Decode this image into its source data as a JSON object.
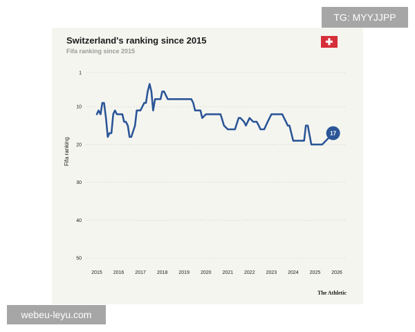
{
  "watermarks": {
    "top_right": "TG: MYYJJPP",
    "bottom_left": "webeu-leyu.com"
  },
  "brand": "The Athletic",
  "flag_icon": "swiss-flag-icon",
  "colors": {
    "line": "#2a5597",
    "flag": "#d62f3a",
    "background": "#f5f5f0"
  },
  "chart_data": {
    "type": "line",
    "title": "Switzerland's ranking since 2015",
    "subtitle": "Fifa ranking since 2015",
    "xlabel": "",
    "ylabel": "Fifa ranking",
    "x_ticks": [
      "2015",
      "2016",
      "2017",
      "2018",
      "2019",
      "2020",
      "2021",
      "2022",
      "2023",
      "2024",
      "2025",
      "2026"
    ],
    "y_ticks": [
      1,
      10,
      20,
      30,
      40,
      50
    ],
    "ylim": [
      51,
      0
    ],
    "y_inverted": true,
    "grid": true,
    "end_label": "17",
    "series": [
      {
        "x": [
          2015.0,
          2015.08,
          2015.17,
          2015.25,
          2015.33,
          2015.42,
          2015.5,
          2015.58,
          2015.67,
          2015.75,
          2015.83,
          2015.92,
          2016.0,
          2016.17,
          2016.25,
          2016.33,
          2016.42,
          2016.5,
          2016.58,
          2016.75,
          2016.83,
          2016.92,
          2017.0,
          2017.17,
          2017.25,
          2017.33,
          2017.42,
          2017.5,
          2017.58,
          2017.67,
          2017.83,
          2017.92,
          2018.0,
          2018.08,
          2018.25,
          2018.33,
          2018.5,
          2018.67,
          2018.83,
          2019.0,
          2019.17,
          2019.33,
          2019.42,
          2019.5,
          2019.67,
          2019.75,
          2019.83,
          2020.0,
          2020.17,
          2020.5,
          2020.67,
          2020.83,
          2021.0,
          2021.17,
          2021.33,
          2021.5,
          2021.58,
          2021.75,
          2021.83,
          2022.0,
          2022.17,
          2022.33,
          2022.42,
          2022.5,
          2022.67,
          2022.83,
          2023.0,
          2023.17,
          2023.33,
          2023.5,
          2023.58,
          2023.67,
          2023.75,
          2023.83,
          2024.0,
          2024.17,
          2024.33,
          2024.5,
          2024.58,
          2024.67,
          2024.83,
          2025.0,
          2025.17,
          2025.33,
          2025.5,
          2025.67,
          2025.83
        ],
        "y": [
          12,
          11,
          12,
          9,
          9,
          13,
          18,
          17,
          17,
          12,
          11,
          12,
          12,
          12,
          14,
          14,
          15,
          18,
          18,
          15,
          11,
          11,
          11,
          9,
          9,
          6,
          4,
          6,
          11,
          8,
          8,
          8,
          6,
          6,
          8,
          8,
          8,
          8,
          8,
          8,
          8,
          8,
          9,
          11,
          11,
          11,
          13,
          12,
          12,
          12,
          12,
          15,
          16,
          16,
          16,
          13,
          13,
          14,
          15,
          13,
          14,
          14,
          15,
          16,
          16,
          14,
          12,
          12,
          12,
          12,
          13,
          14,
          15,
          15,
          19,
          19,
          19,
          19,
          15,
          15,
          20,
          20,
          20,
          20,
          19,
          18,
          17
        ]
      }
    ]
  }
}
